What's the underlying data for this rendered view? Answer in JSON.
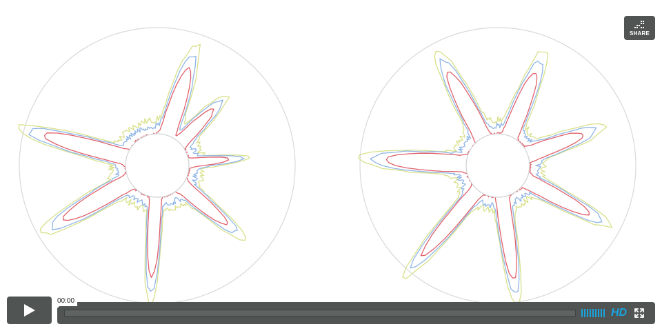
{
  "player": {
    "share_label": "SHARE",
    "current_time": "00:00",
    "hd_label": "HD",
    "progress_fraction": 0.0,
    "volume_level": 1.0
  },
  "colors": {
    "control_bg": "#505553",
    "accent_blue": "#1aa4e0",
    "series_red": "#e0606a",
    "series_blue": "#8fb6e6",
    "series_yellow": "#d8e08a",
    "ring": "#d6d6d6"
  },
  "icons": {
    "share": "share-icon",
    "play": "play-icon",
    "volume": "volume-bars-icon",
    "fullscreen": "fullscreen-icon"
  }
}
